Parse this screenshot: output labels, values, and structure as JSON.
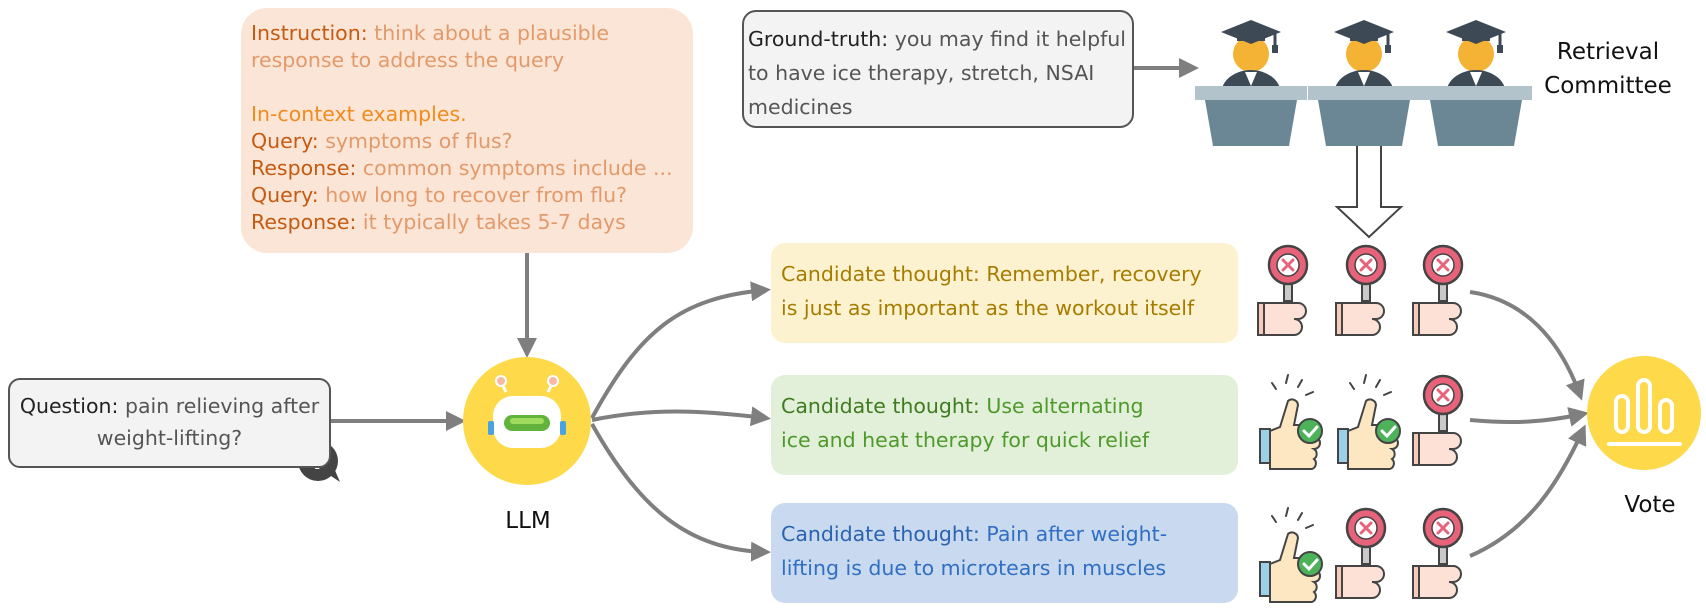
{
  "instruction": {
    "label": "Instruction:",
    "text_line1": "think about a plausible",
    "text_line2": "response to address the query",
    "examples_label": "In-context examples.",
    "examples": [
      {
        "label": "Query:",
        "text": "symptoms of flus?"
      },
      {
        "label": "Response:",
        "text": "common symptoms include ..."
      },
      {
        "label": "Query:",
        "text": "how long to recover from flu?"
      },
      {
        "label": "Response:",
        "text": "it typically takes 5-7 days"
      }
    ]
  },
  "ground_truth": {
    "label": "Ground-truth:",
    "line1": "you may find it helpful",
    "line2": "to have ice therapy, stretch, NSAI",
    "line3": "medicines"
  },
  "committee": {
    "line1": "Retrieval",
    "line2": "Committee",
    "members": 3
  },
  "question": {
    "label": "Question:",
    "line1": "pain relieving after",
    "line2": "weight-lifting?",
    "icon": "question-bubble-icon"
  },
  "llm": {
    "label": "LLM",
    "icon": "robot-icon"
  },
  "candidates": [
    {
      "label": "Candidate thought:",
      "line1": "Remember, recovery",
      "line2": "is just as important as the workout itself",
      "votes": [
        "reject",
        "reject",
        "reject"
      ]
    },
    {
      "label": "Candidate thought:",
      "line1": "Use alternating",
      "line2": "ice and heat therapy for quick relief",
      "votes": [
        "approve",
        "approve",
        "reject"
      ]
    },
    {
      "label": "Candidate thought:",
      "line1": "Pain after weight-",
      "line2": "lifting is due to microtears in muscles",
      "votes": [
        "approve",
        "reject",
        "reject"
      ]
    }
  ],
  "vote": {
    "label": "Vote",
    "icon": "vote-chart-icon"
  },
  "colors": {
    "llm_yellow": "#fed94a",
    "arrow_gray": "#7f7f7f",
    "reject_red": "#e8637a",
    "approve_green": "#4cb35b"
  }
}
